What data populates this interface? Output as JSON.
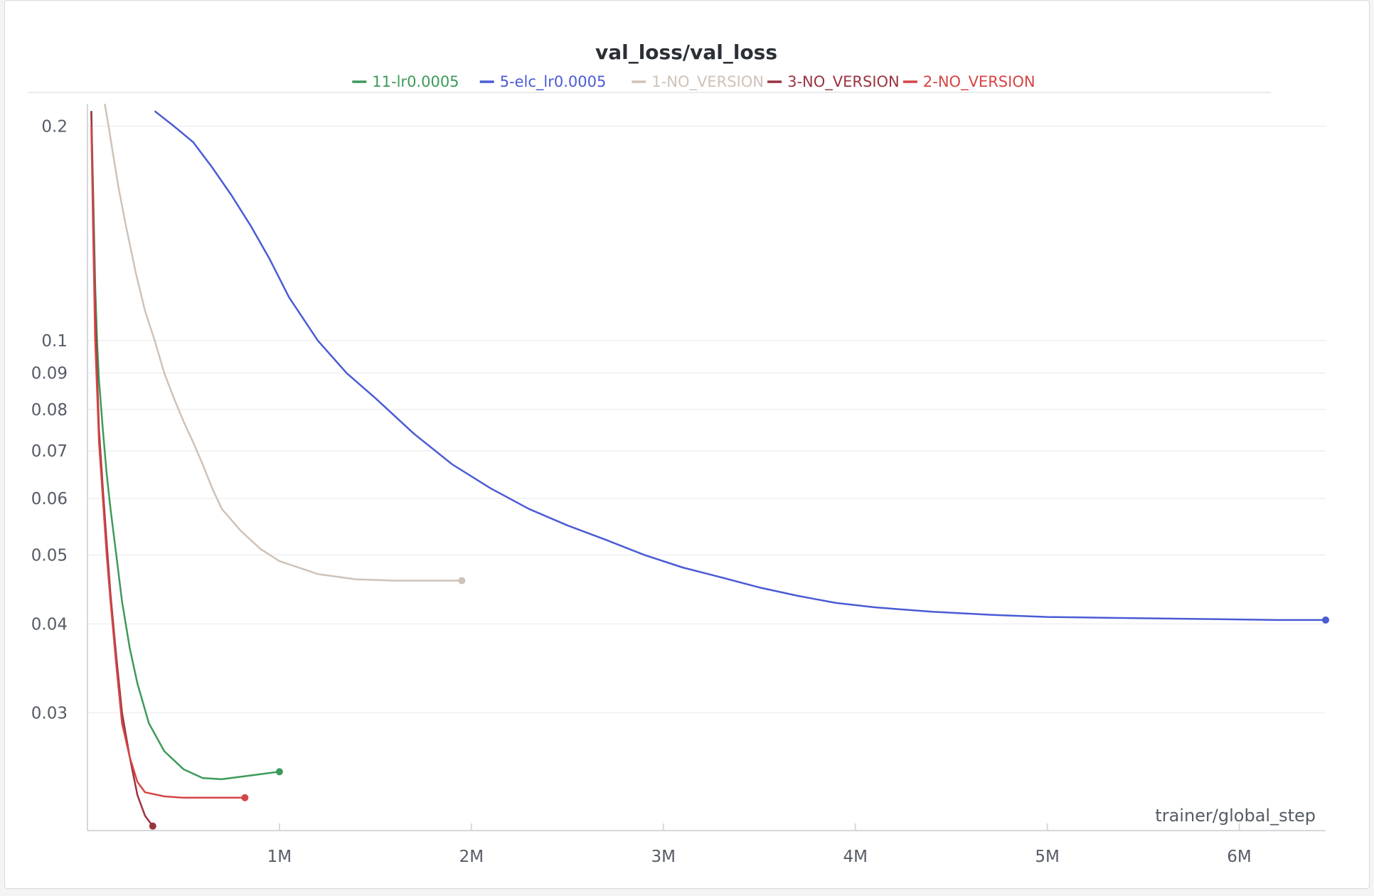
{
  "chart_data": {
    "type": "line",
    "title": "val_loss/val_loss",
    "xlabel": "trainer/global_step",
    "ylabel": "",
    "y_scale": "log",
    "grid": true,
    "legend_position": "top",
    "xlim": [
      0,
      6450000
    ],
    "ylim": [
      0.0205,
      0.215
    ],
    "x_ticks": [
      {
        "value": 1000000,
        "label": "1M"
      },
      {
        "value": 2000000,
        "label": "2M"
      },
      {
        "value": 3000000,
        "label": "3M"
      },
      {
        "value": 4000000,
        "label": "4M"
      },
      {
        "value": 5000000,
        "label": "5M"
      },
      {
        "value": 6000000,
        "label": "6M"
      }
    ],
    "y_ticks": [
      {
        "value": 0.2,
        "label": "0.2"
      },
      {
        "value": 0.1,
        "label": "0.1"
      },
      {
        "value": 0.09,
        "label": "0.09"
      },
      {
        "value": 0.08,
        "label": "0.08"
      },
      {
        "value": 0.07,
        "label": "0.07"
      },
      {
        "value": 0.06,
        "label": "0.06"
      },
      {
        "value": 0.05,
        "label": "0.05"
      },
      {
        "value": 0.04,
        "label": "0.04"
      },
      {
        "value": 0.03,
        "label": "0.03"
      }
    ],
    "series": [
      {
        "name": "11-lr0.0005",
        "color": "#3d9a5a",
        "x": [
          20000,
          30000,
          40000,
          50000,
          60000,
          80000,
          100000,
          120000,
          150000,
          180000,
          220000,
          260000,
          320000,
          400000,
          500000,
          600000,
          700000,
          800000,
          900000,
          1000000
        ],
        "y": [
          0.21,
          0.16,
          0.12,
          0.1,
          0.088,
          0.075,
          0.065,
          0.058,
          0.05,
          0.043,
          0.037,
          0.033,
          0.029,
          0.0265,
          0.025,
          0.0243,
          0.0242,
          0.0244,
          0.0246,
          0.0248
        ]
      },
      {
        "name": "5-elc_lr0.0005",
        "color": "#4a5bd4",
        "x": [
          350000,
          450000,
          550000,
          650000,
          750000,
          850000,
          950000,
          1050000,
          1200000,
          1350000,
          1500000,
          1700000,
          1900000,
          2100000,
          2300000,
          2500000,
          2700000,
          2900000,
          3100000,
          3300000,
          3500000,
          3700000,
          3900000,
          4100000,
          4400000,
          4700000,
          5000000,
          5300000,
          5600000,
          5900000,
          6200000,
          6450000
        ],
        "y": [
          0.21,
          0.2,
          0.19,
          0.175,
          0.16,
          0.145,
          0.13,
          0.115,
          0.1,
          0.09,
          0.083,
          0.074,
          0.067,
          0.062,
          0.058,
          0.055,
          0.0525,
          0.05,
          0.048,
          0.0465,
          0.045,
          0.0438,
          0.0428,
          0.0422,
          0.0416,
          0.0412,
          0.0409,
          0.0408,
          0.0407,
          0.0406,
          0.0405,
          0.0405
        ]
      },
      {
        "name": "1-NO_VERSION",
        "color": "#cfc2b8",
        "x": [
          90000,
          110000,
          130000,
          160000,
          200000,
          250000,
          300000,
          350000,
          400000,
          450000,
          500000,
          550000,
          600000,
          650000,
          700000,
          800000,
          900000,
          1000000,
          1200000,
          1400000,
          1600000,
          1800000,
          1950000
        ],
        "y": [
          0.215,
          0.2,
          0.185,
          0.165,
          0.145,
          0.125,
          0.11,
          0.1,
          0.09,
          0.083,
          0.077,
          0.072,
          0.067,
          0.062,
          0.058,
          0.054,
          0.051,
          0.049,
          0.047,
          0.0462,
          0.046,
          0.046,
          0.046
        ]
      },
      {
        "name": "3-NO_VERSION",
        "color": "#9b3340",
        "x": [
          20000,
          30000,
          40000,
          50000,
          60000,
          80000,
          100000,
          120000,
          150000,
          180000,
          220000,
          260000,
          300000,
          340000
        ],
        "y": [
          0.21,
          0.15,
          0.11,
          0.09,
          0.075,
          0.062,
          0.052,
          0.044,
          0.036,
          0.03,
          0.026,
          0.023,
          0.0215,
          0.0208
        ]
      },
      {
        "name": "2-NO_VERSION",
        "color": "#d64545",
        "x": [
          20000,
          30000,
          40000,
          50000,
          60000,
          80000,
          100000,
          120000,
          150000,
          180000,
          220000,
          260000,
          300000,
          400000,
          500000,
          600000,
          700000,
          820000
        ],
        "y": [
          0.2,
          0.14,
          0.1,
          0.085,
          0.072,
          0.06,
          0.05,
          0.043,
          0.035,
          0.029,
          0.026,
          0.024,
          0.0232,
          0.0229,
          0.0228,
          0.0228,
          0.0228,
          0.0228
        ]
      }
    ]
  }
}
